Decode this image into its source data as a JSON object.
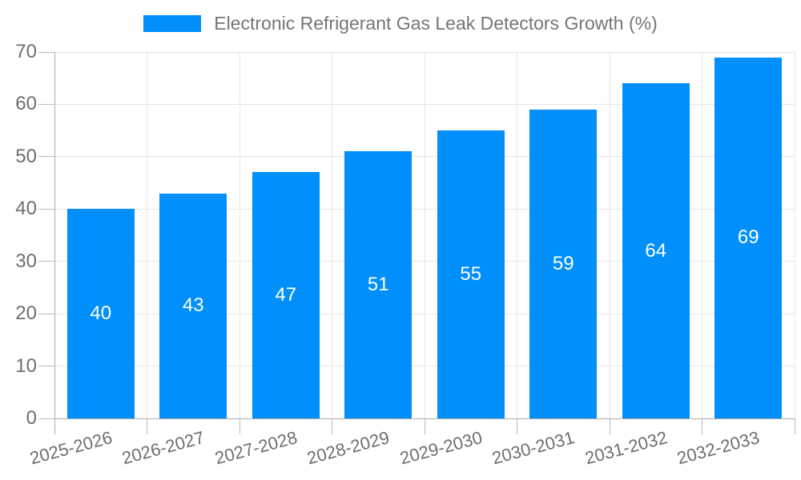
{
  "legend": {
    "label": "Electronic Refrigerant Gas Leak Detectors Growth (%)"
  },
  "colors": {
    "bar": "#008FFB",
    "grid": "#e7e7e7",
    "axis_line": "#ababab",
    "tick": "#bcbcbc",
    "axis_label_text": "#6e6e6e",
    "legend_text": "#757575",
    "value_label_text": "#ffffff",
    "background": "#ffffff"
  },
  "chart_data": {
    "type": "bar",
    "title": "Electronic Refrigerant Gas Leak Detectors Growth (%)",
    "categories": [
      "2025-2026",
      "2026-2027",
      "2027-2028",
      "2028-2029",
      "2029-2030",
      "2030-2031",
      "2031-2032",
      "2032-2033"
    ],
    "values": [
      40,
      43,
      47,
      51,
      55,
      59,
      64,
      69
    ],
    "value_labels": [
      "40",
      "43",
      "47",
      "51",
      "55",
      "59",
      "64",
      "69"
    ],
    "ytick_labels": [
      "0",
      "10",
      "20",
      "30",
      "40",
      "50",
      "60",
      "70"
    ],
    "xlabel": "",
    "ylabel": "",
    "ylim": [
      0,
      70
    ],
    "ytick_step": 10,
    "grid": "on",
    "legend_position": "top-center",
    "x_label_rotation_deg": -15,
    "value_label_position": "inside-center"
  }
}
